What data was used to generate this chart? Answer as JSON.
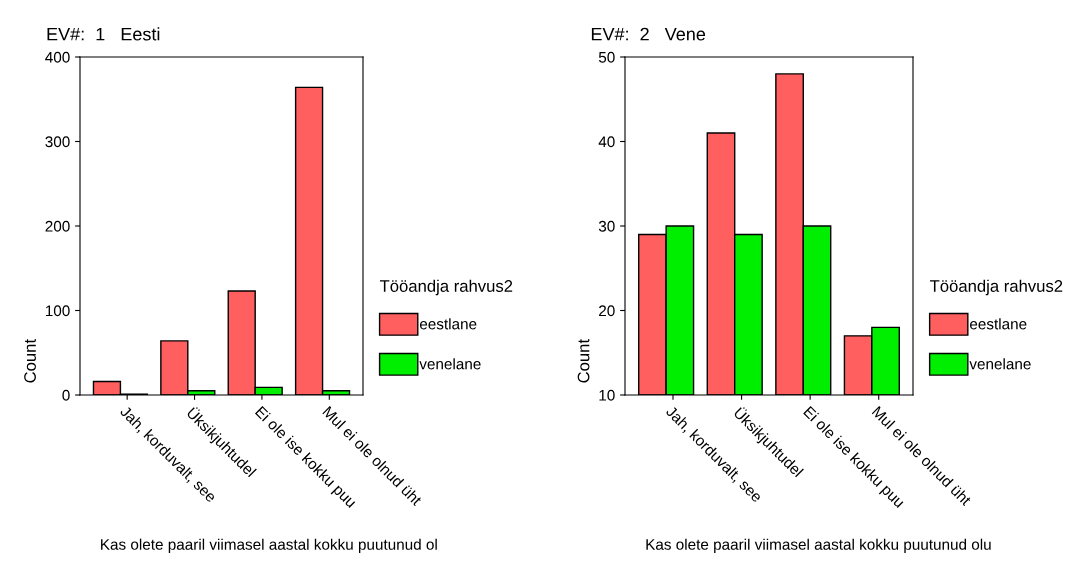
{
  "chart_data": [
    {
      "type": "bar",
      "title": "EV#:  1   Eesti",
      "xlabel": "Kas olete paaril viimasel aastal kokku puutunud ol",
      "ylabel": "Count",
      "legend_title": "Tööandja rahvus2",
      "categories": [
        "Jah, korduvalt, see",
        "Üksikjuhtudel",
        "Ei ole ise kokku puu",
        "Mul ei ole olnud üht"
      ],
      "series": [
        {
          "name": "eestlane",
          "color": "#ff5f5f",
          "values": [
            16,
            64,
            123,
            364
          ]
        },
        {
          "name": "venelane",
          "color": "#00ee00",
          "values": [
            1,
            5,
            9,
            5
          ]
        }
      ],
      "ylim": [
        0,
        400
      ],
      "yticks": [
        0,
        100,
        200,
        300,
        400
      ],
      "grid": false,
      "legend": "right"
    },
    {
      "type": "bar",
      "title": "EV#:  2   Vene",
      "xlabel": "Kas olete paaril viimasel aastal kokku puutunud olu",
      "ylabel": "Count",
      "legend_title": "Tööandja rahvus2",
      "categories": [
        "Jah, korduvalt, see",
        "Üksikjuhtudel",
        "Ei ole ise kokku puu",
        "Mul ei ole olnud üht"
      ],
      "series": [
        {
          "name": "eestlane",
          "color": "#ff5f5f",
          "values": [
            29,
            41,
            48,
            17
          ]
        },
        {
          "name": "venelane",
          "color": "#00ee00",
          "values": [
            30,
            29,
            30,
            18
          ]
        }
      ],
      "ylim": [
        10,
        50
      ],
      "yticks": [
        10,
        20,
        30,
        40,
        50
      ],
      "grid": false,
      "legend": "right"
    }
  ]
}
